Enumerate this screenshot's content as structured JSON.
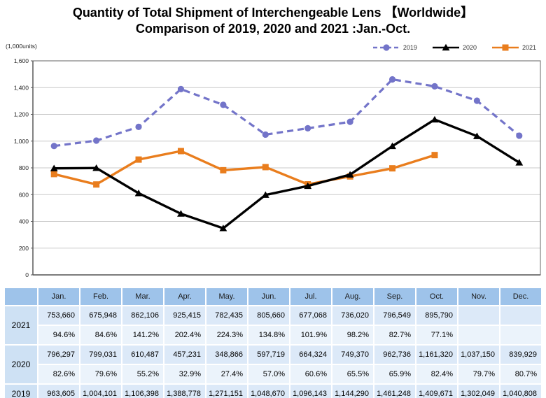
{
  "title": {
    "line1": "Quantity of Total Shipment of Interchengeable Lens 【Worldwide】",
    "line2": "Comparison of 2019, 2020 and 2021 :Jan.-Oct."
  },
  "chart_data": {
    "type": "line",
    "unit_label": "(1,000units)",
    "categories": [
      "Jan.",
      "Feb.",
      "Mar.",
      "Apr.",
      "May.",
      "Jun.",
      "Jul.",
      "Aug.",
      "Sep.",
      "Oct.",
      "Nov.",
      "Dec."
    ],
    "ylim": [
      0,
      1600
    ],
    "ytick_step": 200,
    "ytick_labels": [
      "0",
      "200",
      "400",
      "600",
      "800",
      "1,000",
      "1,200",
      "1,400",
      "1,600"
    ],
    "grid": true,
    "legend_position": "top-right",
    "series": [
      {
        "name": "2019",
        "color": "#7374C9",
        "dash": true,
        "marker": "circle",
        "values": [
          963.605,
          1004.101,
          1106.398,
          1388.778,
          1271.151,
          1048.67,
          1096.143,
          1144.29,
          1461.248,
          1409.671,
          1302.049,
          1040.808
        ]
      },
      {
        "name": "2020",
        "color": "#000000",
        "dash": false,
        "marker": "triangle",
        "values": [
          796.297,
          799.031,
          610.487,
          457.231,
          348.866,
          597.719,
          664.324,
          749.37,
          962.736,
          1161.32,
          1037.15,
          839.929
        ]
      },
      {
        "name": "2021",
        "color": "#E97D1D",
        "dash": false,
        "marker": "square",
        "values": [
          753.66,
          675.948,
          862.106,
          925.415,
          782.435,
          805.66,
          677.068,
          736.02,
          796.549,
          895.79,
          null,
          null
        ]
      }
    ]
  },
  "table": {
    "corner_label": "",
    "columns": [
      "Jan.",
      "Feb.",
      "Mar.",
      "Apr.",
      "May.",
      "Jun.",
      "Jul.",
      "Aug.",
      "Sep.",
      "Oct.",
      "Nov.",
      "Dec."
    ],
    "rows": [
      {
        "year": "2021",
        "values": [
          "753,660",
          "675,948",
          "862,106",
          "925,415",
          "782,435",
          "805,660",
          "677,068",
          "736,020",
          "796,549",
          "895,790",
          "",
          ""
        ],
        "percents": [
          "94.6%",
          "84.6%",
          "141.2%",
          "202.4%",
          "224.3%",
          "134.8%",
          "101.9%",
          "98.2%",
          "82.7%",
          "77.1%",
          "",
          ""
        ]
      },
      {
        "year": "2020",
        "values": [
          "796,297",
          "799,031",
          "610,487",
          "457,231",
          "348,866",
          "597,719",
          "664,324",
          "749,370",
          "962,736",
          "1,161,320",
          "1,037,150",
          "839,929"
        ],
        "percents": [
          "82.6%",
          "79.6%",
          "55.2%",
          "32.9%",
          "27.4%",
          "57.0%",
          "60.6%",
          "65.5%",
          "65.9%",
          "82.4%",
          "79.7%",
          "80.7%"
        ]
      },
      {
        "year": "2019",
        "values": [
          "963,605",
          "1,004,101",
          "1,106,398",
          "1,388,778",
          "1,271,151",
          "1,048,670",
          "1,096,143",
          "1,144,290",
          "1,461,248",
          "1,409,671",
          "1,302,049",
          "1,040,808"
        ]
      }
    ]
  },
  "colors": {
    "header_bg": "#9EC3EA",
    "year_bg": "#CEE1F4",
    "value_bg": "#DCE9F8",
    "percent_bg": "#EBF3FB",
    "grid": "#C8C8C8",
    "plot_border": "#808080",
    "axis": "#595959"
  }
}
